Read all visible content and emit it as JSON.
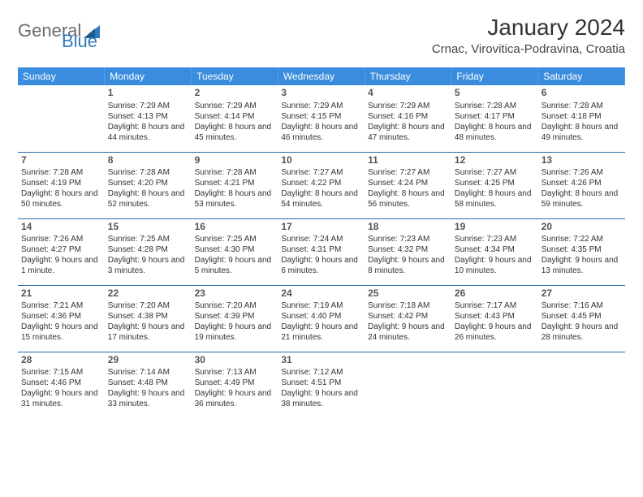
{
  "brand": {
    "word1": "General",
    "word2": "Blue"
  },
  "title": "January 2024",
  "location": "Crnac, Virovitica-Podravina, Croatia",
  "colors": {
    "header_bg": "#3a8dde",
    "header_text": "#ffffff",
    "row_border": "#2a6aa3",
    "brand_gray": "#6b6b6b",
    "brand_blue": "#2f7bbf",
    "text": "#333333",
    "bg": "#ffffff"
  },
  "weekdays": [
    "Sunday",
    "Monday",
    "Tuesday",
    "Wednesday",
    "Thursday",
    "Friday",
    "Saturday"
  ],
  "calendar": {
    "type": "table",
    "columns": 7,
    "rows": 5,
    "first_day_column_index": 1,
    "days": [
      {
        "n": 1,
        "sunrise": "7:29 AM",
        "sunset": "4:13 PM",
        "daylight": "8 hours and 44 minutes."
      },
      {
        "n": 2,
        "sunrise": "7:29 AM",
        "sunset": "4:14 PM",
        "daylight": "8 hours and 45 minutes."
      },
      {
        "n": 3,
        "sunrise": "7:29 AM",
        "sunset": "4:15 PM",
        "daylight": "8 hours and 46 minutes."
      },
      {
        "n": 4,
        "sunrise": "7:29 AM",
        "sunset": "4:16 PM",
        "daylight": "8 hours and 47 minutes."
      },
      {
        "n": 5,
        "sunrise": "7:28 AM",
        "sunset": "4:17 PM",
        "daylight": "8 hours and 48 minutes."
      },
      {
        "n": 6,
        "sunrise": "7:28 AM",
        "sunset": "4:18 PM",
        "daylight": "8 hours and 49 minutes."
      },
      {
        "n": 7,
        "sunrise": "7:28 AM",
        "sunset": "4:19 PM",
        "daylight": "8 hours and 50 minutes."
      },
      {
        "n": 8,
        "sunrise": "7:28 AM",
        "sunset": "4:20 PM",
        "daylight": "8 hours and 52 minutes."
      },
      {
        "n": 9,
        "sunrise": "7:28 AM",
        "sunset": "4:21 PM",
        "daylight": "8 hours and 53 minutes."
      },
      {
        "n": 10,
        "sunrise": "7:27 AM",
        "sunset": "4:22 PM",
        "daylight": "8 hours and 54 minutes."
      },
      {
        "n": 11,
        "sunrise": "7:27 AM",
        "sunset": "4:24 PM",
        "daylight": "8 hours and 56 minutes."
      },
      {
        "n": 12,
        "sunrise": "7:27 AM",
        "sunset": "4:25 PM",
        "daylight": "8 hours and 58 minutes."
      },
      {
        "n": 13,
        "sunrise": "7:26 AM",
        "sunset": "4:26 PM",
        "daylight": "8 hours and 59 minutes."
      },
      {
        "n": 14,
        "sunrise": "7:26 AM",
        "sunset": "4:27 PM",
        "daylight": "9 hours and 1 minute."
      },
      {
        "n": 15,
        "sunrise": "7:25 AM",
        "sunset": "4:28 PM",
        "daylight": "9 hours and 3 minutes."
      },
      {
        "n": 16,
        "sunrise": "7:25 AM",
        "sunset": "4:30 PM",
        "daylight": "9 hours and 5 minutes."
      },
      {
        "n": 17,
        "sunrise": "7:24 AM",
        "sunset": "4:31 PM",
        "daylight": "9 hours and 6 minutes."
      },
      {
        "n": 18,
        "sunrise": "7:23 AM",
        "sunset": "4:32 PM",
        "daylight": "9 hours and 8 minutes."
      },
      {
        "n": 19,
        "sunrise": "7:23 AM",
        "sunset": "4:34 PM",
        "daylight": "9 hours and 10 minutes."
      },
      {
        "n": 20,
        "sunrise": "7:22 AM",
        "sunset": "4:35 PM",
        "daylight": "9 hours and 13 minutes."
      },
      {
        "n": 21,
        "sunrise": "7:21 AM",
        "sunset": "4:36 PM",
        "daylight": "9 hours and 15 minutes."
      },
      {
        "n": 22,
        "sunrise": "7:20 AM",
        "sunset": "4:38 PM",
        "daylight": "9 hours and 17 minutes."
      },
      {
        "n": 23,
        "sunrise": "7:20 AM",
        "sunset": "4:39 PM",
        "daylight": "9 hours and 19 minutes."
      },
      {
        "n": 24,
        "sunrise": "7:19 AM",
        "sunset": "4:40 PM",
        "daylight": "9 hours and 21 minutes."
      },
      {
        "n": 25,
        "sunrise": "7:18 AM",
        "sunset": "4:42 PM",
        "daylight": "9 hours and 24 minutes."
      },
      {
        "n": 26,
        "sunrise": "7:17 AM",
        "sunset": "4:43 PM",
        "daylight": "9 hours and 26 minutes."
      },
      {
        "n": 27,
        "sunrise": "7:16 AM",
        "sunset": "4:45 PM",
        "daylight": "9 hours and 28 minutes."
      },
      {
        "n": 28,
        "sunrise": "7:15 AM",
        "sunset": "4:46 PM",
        "daylight": "9 hours and 31 minutes."
      },
      {
        "n": 29,
        "sunrise": "7:14 AM",
        "sunset": "4:48 PM",
        "daylight": "9 hours and 33 minutes."
      },
      {
        "n": 30,
        "sunrise": "7:13 AM",
        "sunset": "4:49 PM",
        "daylight": "9 hours and 36 minutes."
      },
      {
        "n": 31,
        "sunrise": "7:12 AM",
        "sunset": "4:51 PM",
        "daylight": "9 hours and 38 minutes."
      }
    ]
  },
  "labels": {
    "sunrise_prefix": "Sunrise: ",
    "sunset_prefix": "Sunset: ",
    "daylight_prefix": "Daylight: "
  }
}
